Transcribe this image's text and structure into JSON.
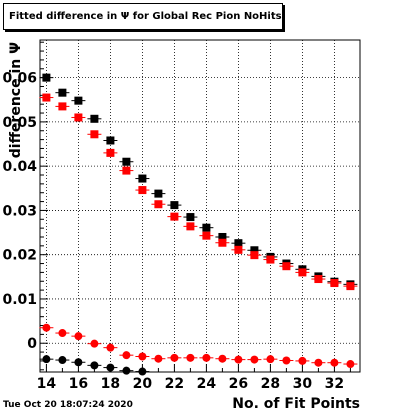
{
  "title": "Fitted difference in  Ψ  for Global Rec Pion NoHits",
  "timestamp": "Tue Oct 20 18:07:24 2020",
  "chart_data": {
    "type": "scatter",
    "title": "Fitted difference in  Ψ  for Global Rec Pion NoHits",
    "xlabel": "No. of Fit Points",
    "ylabel": "difference in  Ψ",
    "xlim": [
      13.6,
      33.6
    ],
    "ylim": [
      -0.0065,
      0.0685
    ],
    "x_ticks": [
      14,
      16,
      18,
      20,
      22,
      24,
      26,
      28,
      30,
      32
    ],
    "y_ticks": [
      0,
      0.01,
      0.02,
      0.03,
      0.04,
      0.05,
      0.06
    ],
    "y_tick_labels": [
      "0",
      "0.01",
      "0.02",
      "0.03",
      "0.04",
      "0.05",
      "0.06"
    ],
    "grid": true,
    "x": [
      14,
      15,
      16,
      17,
      18,
      19,
      20,
      21,
      22,
      23,
      24,
      25,
      26,
      27,
      28,
      29,
      30,
      31,
      32,
      33
    ],
    "series": [
      {
        "marker": "square",
        "color": "#000000",
        "values": [
          0.06,
          0.0566,
          0.0548,
          0.0507,
          0.0458,
          0.041,
          0.0372,
          0.0338,
          0.0312,
          0.0285,
          0.0261,
          0.024,
          0.0226,
          0.021,
          0.0195,
          0.018,
          0.0167,
          0.0151,
          0.0139,
          0.0133
        ]
      },
      {
        "marker": "square",
        "color": "#ff0000",
        "values": [
          0.0555,
          0.0535,
          0.051,
          0.0472,
          0.043,
          0.039,
          0.0346,
          0.0314,
          0.0286,
          0.0264,
          0.0243,
          0.0227,
          0.0211,
          0.0199,
          0.0189,
          0.0174,
          0.016,
          0.0145,
          0.0136,
          0.0129
        ]
      },
      {
        "marker": "circle",
        "color": "#ff0000",
        "values": [
          0.0035,
          0.0023,
          0.0016,
          -0.0001,
          -0.001,
          -0.0027,
          -0.003,
          -0.0035,
          -0.0033,
          -0.0033,
          -0.0033,
          -0.0035,
          -0.0037,
          -0.0037,
          -0.0036,
          -0.0039,
          -0.004,
          -0.0044,
          -0.0044,
          -0.0047
        ]
      },
      {
        "marker": "circle",
        "color": "#000000",
        "values": [
          -0.0036,
          -0.0038,
          -0.0043,
          -0.005,
          -0.0055,
          -0.0062,
          -0.0064
        ]
      }
    ]
  }
}
